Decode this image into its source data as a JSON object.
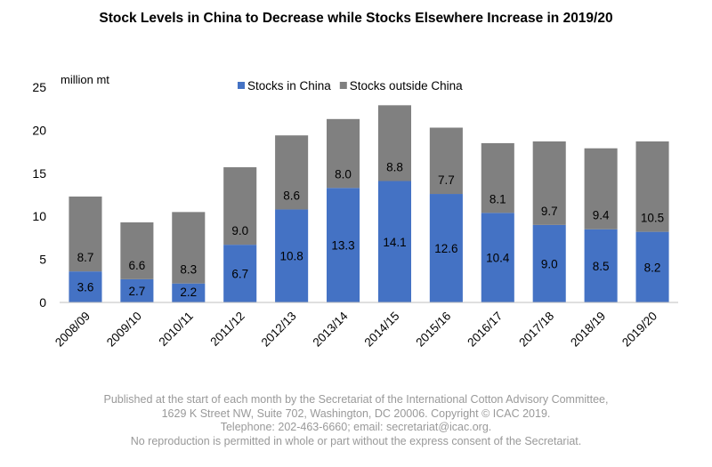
{
  "chart_data": {
    "type": "bar",
    "stacked": true,
    "title": "Stock Levels in China to Decrease while Stocks Elsewhere Increase in 2019/20",
    "ylabel": "million  mt",
    "xlabel": "",
    "ylim": [
      0,
      25
    ],
    "yticks": [
      0,
      5,
      10,
      15,
      20,
      25
    ],
    "grid": false,
    "legend_position": "top-center",
    "categories": [
      "2008/09",
      "2009/10",
      "2010/11",
      "2011/12",
      "2012/13",
      "2013/14",
      "2014/15",
      "2015/16",
      "2016/17",
      "2017/18",
      "2018/19",
      "2019/20"
    ],
    "series": [
      {
        "name": "Stocks in China",
        "color": "#4472c4",
        "label_color": "#000000",
        "values": [
          3.6,
          2.7,
          2.2,
          6.7,
          10.8,
          13.3,
          14.1,
          12.6,
          10.4,
          9.0,
          8.5,
          8.2
        ],
        "labels": [
          "3.6",
          "2.7",
          "2.2",
          "6.7",
          "10.8",
          "13.3",
          "14.1",
          "12.6",
          "10.4",
          "9.0",
          "8.5",
          "8.2"
        ]
      },
      {
        "name": "Stocks outside China",
        "color": "#808080",
        "label_color": "#000000",
        "values": [
          8.7,
          6.6,
          8.3,
          9.0,
          8.6,
          8.0,
          8.8,
          7.7,
          8.1,
          9.7,
          9.4,
          10.5
        ],
        "labels": [
          "8.7",
          "6.6",
          "8.3",
          "9.0",
          "8.6",
          "8.0",
          "8.8",
          "7.7",
          "8.1",
          "9.7",
          "9.4",
          "10.5"
        ]
      }
    ]
  },
  "footer": {
    "line1": "Published at the start of each month by the Secretariat of the International Cotton Advisory Committee,",
    "line2": "1629 K Street NW, Suite 702, Washington, DC 20006. Copyright © ICAC 2019.",
    "line3": "Telephone: 202-463-6660; email: secretariat@icac.org.",
    "line4": "No reproduction is permitted in whole or part without the express consent of the Secretariat."
  }
}
